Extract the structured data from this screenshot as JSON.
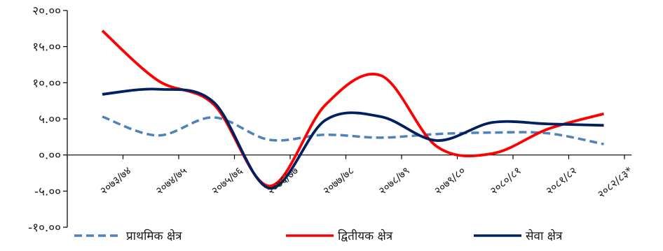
{
  "chart_data": {
    "type": "line",
    "categories": [
      "२०७३/७४",
      "२०७४/७५",
      "२०७५/७६",
      "२०७६/७७",
      "२०७७/७८",
      "२०७८/७९",
      "२०७९/८०",
      "२०८०/८१",
      "२०८१/८२",
      "२०८२/८३*"
    ],
    "ylim": [
      -10,
      20
    ],
    "yticks": [
      20,
      15,
      10,
      5,
      0,
      -5,
      -10
    ],
    "ytick_labels": [
      "२०.००",
      "१५.००",
      "१०.००",
      "५.००",
      "०.००",
      "-५.००",
      "-१०.००"
    ],
    "grid": false,
    "legend_position": "bottom",
    "series": [
      {
        "name": "प्राथमिक क्षेत्र",
        "color": "#4f81bd",
        "dashed": true,
        "values": [
          5.3,
          2.7,
          5.2,
          2.1,
          2.8,
          2.4,
          2.9,
          3.1,
          3.0,
          1.5
        ]
      },
      {
        "name": "द्वितीयक क्षेत्र",
        "color": "#ff0000",
        "dashed": false,
        "values": [
          17.2,
          10.3,
          7.0,
          -4.3,
          6.9,
          11.0,
          1.2,
          0.2,
          3.6,
          5.7
        ]
      },
      {
        "name": "सेवा क्षेत्र",
        "color": "#002060",
        "dashed": false,
        "values": [
          8.4,
          9.1,
          7.3,
          -4.6,
          4.8,
          5.3,
          2.0,
          4.5,
          4.3,
          4.1
        ]
      }
    ]
  }
}
